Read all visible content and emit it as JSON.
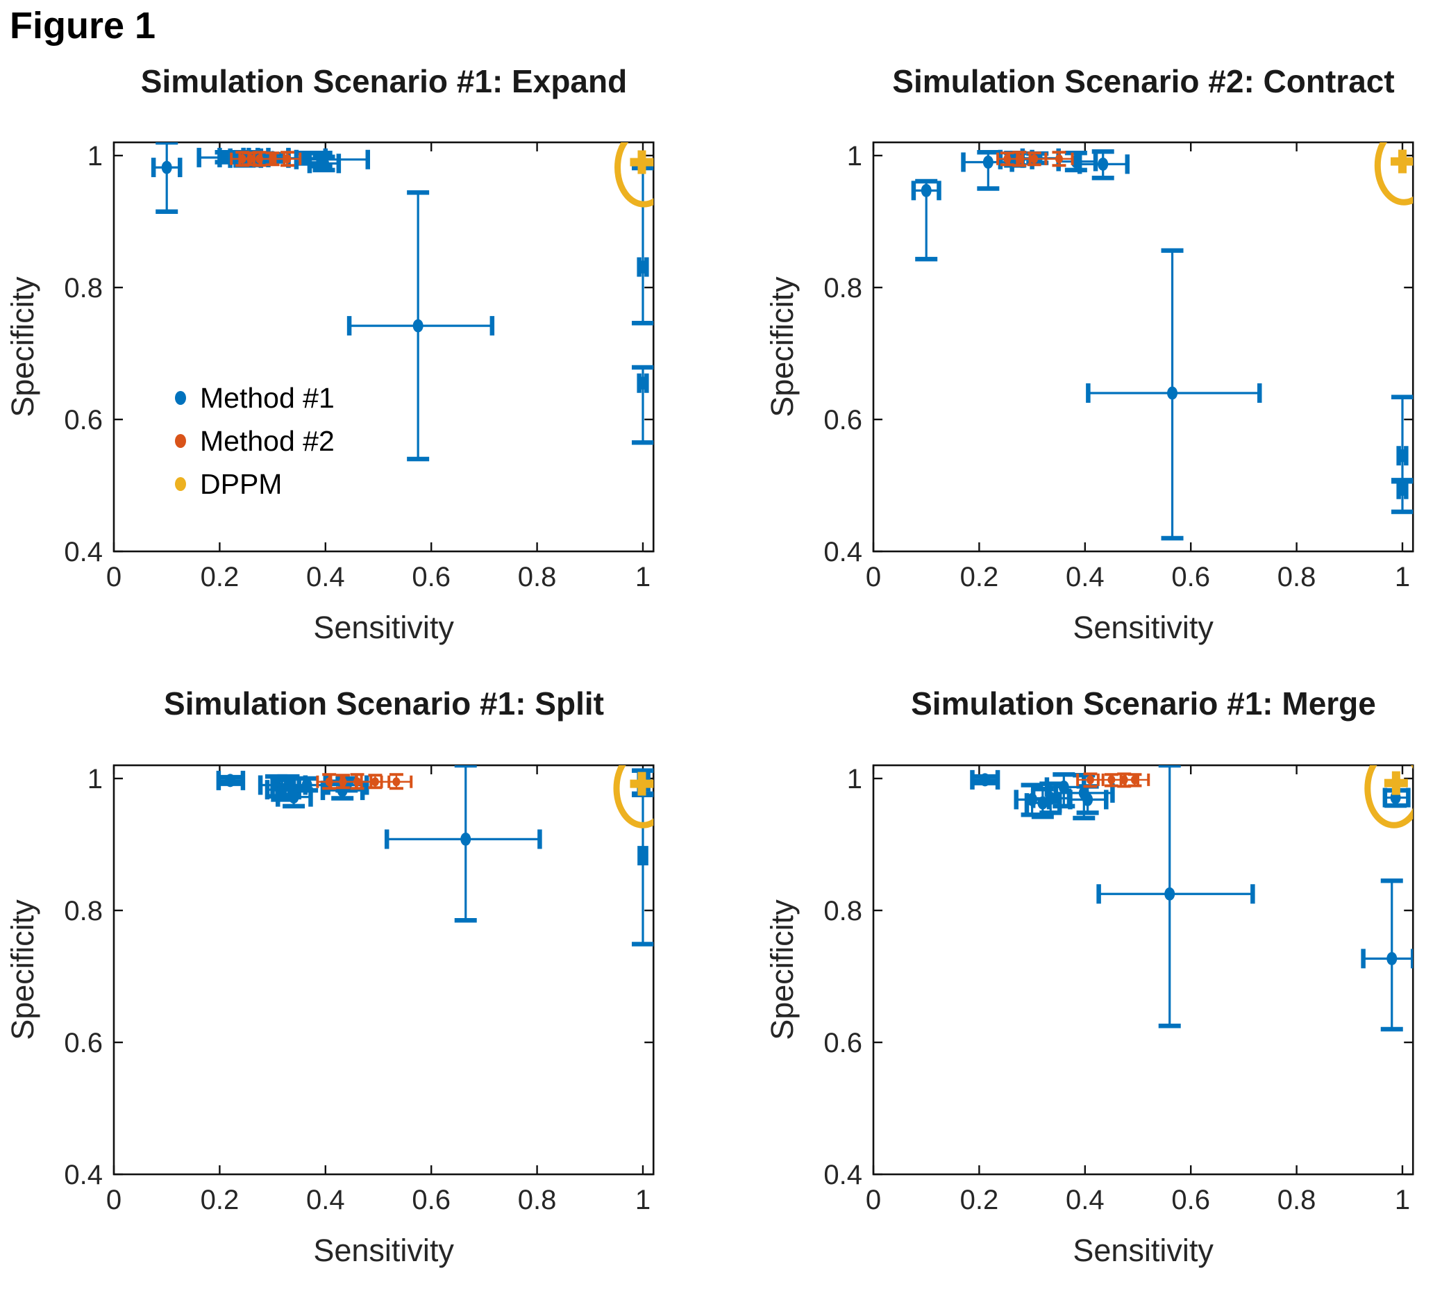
{
  "figure_label": "Figure 1",
  "colors": {
    "method1": "#0072BD",
    "method2": "#D95319",
    "dppm": "#EDB120",
    "axis": "#111111",
    "text": "#262626"
  },
  "legend": {
    "items": [
      {
        "label": "Method #1",
        "color_key": "method1"
      },
      {
        "label": "Method #2",
        "color_key": "method2"
      },
      {
        "label": "DPPM",
        "color_key": "dppm"
      }
    ]
  },
  "axes": {
    "xlabel": "Sensitivity",
    "ylabel": "Specificity",
    "xlim": [
      0,
      1.02
    ],
    "ylim": [
      0.4,
      1.02
    ],
    "xticks": [
      0,
      0.2,
      0.4,
      0.6,
      0.8,
      1
    ],
    "xtick_labels": [
      "0",
      "0.2",
      "0.4",
      "0.6",
      "0.8",
      "1"
    ],
    "yticks": [
      0.4,
      0.6,
      0.8,
      1
    ],
    "ytick_labels": [
      "0.4",
      "0.6",
      "0.8",
      "1"
    ],
    "grid": false
  },
  "chart_data": [
    {
      "type": "scatter",
      "title": "Simulation Scenario #1: Expand",
      "xlabel": "Sensitivity",
      "ylabel": "Specificity",
      "show_legend": true,
      "series": [
        {
          "name": "Method #1",
          "color_key": "method1",
          "points": [
            [
              0.1,
              0.982,
              0.075,
              0.125,
              0.915,
              1.02
            ],
            [
              0.212,
              0.997,
              0.161,
              0.245,
              0.99,
              1.005
            ],
            [
              0.228,
              0.997,
              0.2,
              0.255,
              0.992,
              1.002
            ],
            [
              0.247,
              0.996,
              0.22,
              0.278,
              0.985,
              1.005
            ],
            [
              0.268,
              0.997,
              0.245,
              0.292,
              0.99,
              1.003
            ],
            [
              0.3,
              0.997,
              0.272,
              0.33,
              0.991,
              1.002
            ],
            [
              0.363,
              0.996,
              0.33,
              0.4,
              0.988,
              1.004
            ],
            [
              0.392,
              0.994,
              0.345,
              0.48,
              0.984,
              1.004
            ],
            [
              0.397,
              0.988,
              0.37,
              0.425,
              0.978,
              0.998
            ],
            [
              0.575,
              0.742,
              0.445,
              0.715,
              0.54,
              0.944
            ],
            [
              1.0,
              0.831,
              0.993,
              1.007,
              0.746,
              0.981
            ],
            [
              1.0,
              0.655,
              0.993,
              1.007,
              0.565,
              0.679
            ]
          ]
        },
        {
          "name": "Method #2",
          "color_key": "method2",
          "points": [
            [
              0.243,
              0.995,
              0.222,
              0.265,
              0.985,
              1.005
            ],
            [
              0.258,
              0.995,
              0.238,
              0.278,
              0.986,
              1.004
            ],
            [
              0.275,
              0.995,
              0.255,
              0.296,
              0.985,
              1.005
            ],
            [
              0.3,
              0.995,
              0.278,
              0.322,
              0.986,
              1.004
            ],
            [
              0.328,
              0.995,
              0.305,
              0.352,
              0.985,
              1.005
            ]
          ]
        },
        {
          "name": "DPPM",
          "color_key": "dppm",
          "points": [
            [
              0.998,
              0.99
            ]
          ]
        }
      ],
      "annotation_circle": {
        "cx": 1.002,
        "cy": 0.982
      }
    },
    {
      "type": "scatter",
      "title": "Simulation Scenario #2: Contract",
      "xlabel": "Sensitivity",
      "ylabel": "Specificity",
      "show_legend": false,
      "series": [
        {
          "name": "Method #1",
          "color_key": "method1",
          "points": [
            [
              0.1,
              0.947,
              0.076,
              0.124,
              0.843,
              0.961
            ],
            [
              0.217,
              0.99,
              0.17,
              0.262,
              0.95,
              1.005
            ],
            [
              0.268,
              0.994,
              0.24,
              0.3,
              0.985,
              1.004
            ],
            [
              0.31,
              0.996,
              0.282,
              0.35,
              0.989,
              1.003
            ],
            [
              0.383,
              0.991,
              0.35,
              0.42,
              0.978,
              1.004
            ],
            [
              0.434,
              0.987,
              0.39,
              0.48,
              0.966,
              1.006
            ],
            [
              0.565,
              0.64,
              0.406,
              0.73,
              0.42,
              0.856
            ],
            [
              1.0,
              0.545,
              0.993,
              1.007,
              0.506,
              0.634
            ],
            [
              1.0,
              0.494,
              0.993,
              1.007,
              0.46,
              0.508
            ]
          ]
        },
        {
          "name": "Method #2",
          "color_key": "method2",
          "points": [
            [
              0.253,
              0.995,
              0.235,
              0.272,
              0.986,
              1.004
            ],
            [
              0.276,
              0.995,
              0.256,
              0.296,
              0.985,
              1.005
            ],
            [
              0.304,
              0.995,
              0.282,
              0.326,
              0.986,
              1.004
            ],
            [
              0.351,
              0.995,
              0.326,
              0.376,
              0.985,
              1.005
            ]
          ]
        },
        {
          "name": "DPPM",
          "color_key": "dppm",
          "points": [
            [
              1.0,
              0.991
            ]
          ]
        }
      ],
      "annotation_circle": {
        "cx": 1.003,
        "cy": 0.985
      }
    },
    {
      "type": "scatter",
      "title": "Simulation Scenario #1: Split",
      "xlabel": "Sensitivity",
      "ylabel": "Specificity",
      "show_legend": false,
      "series": [
        {
          "name": "Method #1",
          "color_key": "method1",
          "points": [
            [
              0.22,
              0.997,
              0.198,
              0.244,
              0.992,
              1.002
            ],
            [
              0.307,
              0.99,
              0.277,
              0.34,
              0.973,
              1.003
            ],
            [
              0.318,
              0.983,
              0.29,
              0.35,
              0.968,
              0.998
            ],
            [
              0.33,
              0.99,
              0.3,
              0.362,
              0.975,
              1.003
            ],
            [
              0.34,
              0.972,
              0.31,
              0.372,
              0.958,
              0.988
            ],
            [
              0.365,
              0.99,
              0.335,
              0.4,
              0.982,
              1.0
            ],
            [
              0.432,
              0.982,
              0.395,
              0.47,
              0.97,
              0.995
            ],
            [
              0.44,
              0.99,
              0.405,
              0.478,
              0.982,
              1.0
            ],
            [
              0.665,
              0.908,
              0.516,
              0.805,
              0.785,
              1.02
            ],
            [
              1.0,
              0.995,
              0.993,
              1.01,
              0.977,
              1.012
            ],
            [
              1.0,
              0.883,
              0.994,
              1.006,
              0.749,
              0.975
            ]
          ]
        },
        {
          "name": "Method #2",
          "color_key": "method2",
          "points": [
            [
              0.407,
              0.995,
              0.385,
              0.43,
              0.985,
              1.006
            ],
            [
              0.433,
              0.995,
              0.41,
              0.458,
              0.986,
              1.005
            ],
            [
              0.46,
              0.995,
              0.435,
              0.486,
              0.985,
              1.006
            ],
            [
              0.494,
              0.995,
              0.468,
              0.52,
              0.986,
              1.005
            ],
            [
              0.534,
              0.995,
              0.506,
              0.562,
              0.985,
              1.006
            ]
          ]
        },
        {
          "name": "DPPM",
          "color_key": "dppm",
          "points": [
            [
              0.998,
              0.992
            ]
          ]
        }
      ],
      "annotation_circle": {
        "cx": 1.0,
        "cy": 0.985
      }
    },
    {
      "type": "scatter",
      "title": "Simulation Scenario #1: Merge",
      "xlabel": "Sensitivity",
      "ylabel": "Specificity",
      "show_legend": false,
      "series": [
        {
          "name": "Method #1",
          "color_key": "method1",
          "points": [
            [
              0.211,
              0.998,
              0.187,
              0.235,
              0.993,
              1.003
            ],
            [
              0.3,
              0.968,
              0.27,
              0.332,
              0.945,
              0.99
            ],
            [
              0.32,
              0.963,
              0.29,
              0.352,
              0.942,
              0.984
            ],
            [
              0.335,
              0.97,
              0.302,
              0.37,
              0.948,
              0.992
            ],
            [
              0.36,
              0.987,
              0.328,
              0.398,
              0.958,
              1.006
            ],
            [
              0.398,
              0.978,
              0.345,
              0.452,
              0.94,
              1.005
            ],
            [
              0.405,
              0.968,
              0.372,
              0.44,
              0.948,
              0.988
            ],
            [
              0.56,
              0.825,
              0.426,
              0.717,
              0.625,
              1.02
            ],
            [
              0.987,
              0.971,
              0.967,
              1.011,
              0.959,
              0.982
            ],
            [
              0.98,
              0.727,
              0.926,
              1.02,
              0.62,
              0.845
            ]
          ]
        },
        {
          "name": "Method #2",
          "color_key": "method2",
          "points": [
            [
              0.41,
              0.998,
              0.386,
              0.434,
              0.988,
              1.007
            ],
            [
              0.45,
              0.998,
              0.425,
              0.476,
              0.989,
              1.006
            ],
            [
              0.474,
              0.998,
              0.449,
              0.5,
              0.988,
              1.007
            ],
            [
              0.494,
              0.998,
              0.468,
              0.52,
              0.989,
              1.006
            ]
          ]
        },
        {
          "name": "DPPM",
          "color_key": "dppm",
          "points": [
            [
              0.988,
              0.993
            ]
          ]
        }
      ],
      "annotation_circle": {
        "cx": 0.984,
        "cy": 0.985
      }
    }
  ]
}
